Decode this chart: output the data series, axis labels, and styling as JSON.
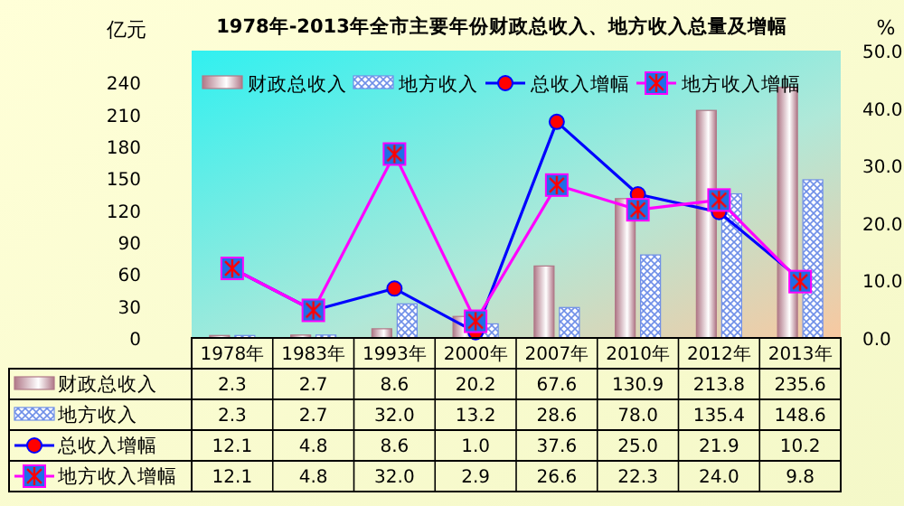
{
  "chart_data": {
    "type": "bar",
    "title": "1978年-2013年全市主要年份财政总收入、地方收入总量及增幅",
    "ylabel": "亿元",
    "y2label": "%",
    "categories": [
      "1978年",
      "1983年",
      "1993年",
      "2000年",
      "2007年",
      "2010年",
      "2012年",
      "2013年"
    ],
    "series": [
      {
        "name": "财政总收入",
        "color": "#b07888",
        "values": [
          2.3,
          2.7,
          8.6,
          20.2,
          67.6,
          130.9,
          213.8,
          235.6
        ],
        "value_labels": [
          "2.3",
          "2.7",
          "8.6",
          "20.2",
          "67.6",
          "130.9",
          "213.8",
          "235.6"
        ]
      },
      {
        "name": "地方收入",
        "color": "#6f8fe8",
        "values": [
          2.3,
          2.7,
          32.0,
          13.2,
          28.6,
          78.0,
          135.4,
          148.6
        ],
        "value_labels": [
          "2.3",
          "2.7",
          "32.0",
          "13.2",
          "28.6",
          "78.0",
          "135.4",
          "148.6"
        ]
      },
      {
        "name": "总收入增幅",
        "type": "line",
        "axis": "y2",
        "color": "#0000ff",
        "marker": "circle",
        "values": [
          12.1,
          4.8,
          8.6,
          1.0,
          37.6,
          25.0,
          21.9,
          10.2
        ],
        "value_labels": [
          "12.1",
          "4.8",
          "8.6",
          "1.0",
          "37.6",
          "25.0",
          "21.9",
          "10.2"
        ]
      },
      {
        "name": "地方收入增幅",
        "type": "line",
        "axis": "y2",
        "color": "#ff00ff",
        "marker": "square",
        "values": [
          12.1,
          4.8,
          32.0,
          2.9,
          26.6,
          22.3,
          24.0,
          9.8
        ],
        "value_labels": [
          "12.1",
          "4.8",
          "32.0",
          "2.9",
          "26.6",
          "22.3",
          "24.0",
          "9.8"
        ]
      }
    ],
    "ylim": [
      0,
      270
    ],
    "yticks": [
      0,
      30,
      60,
      90,
      120,
      150,
      180,
      210,
      240
    ],
    "y2lim": [
      0,
      50
    ],
    "y2ticks": [
      {
        "value": 0,
        "label": "0.0"
      },
      {
        "value": 10,
        "label": "10.0"
      },
      {
        "value": 20,
        "label": "20.0"
      },
      {
        "value": 30,
        "label": "30.0"
      },
      {
        "value": 40,
        "label": "40.0"
      },
      {
        "value": 50,
        "label": "50.0"
      }
    ],
    "legend": "top"
  }
}
